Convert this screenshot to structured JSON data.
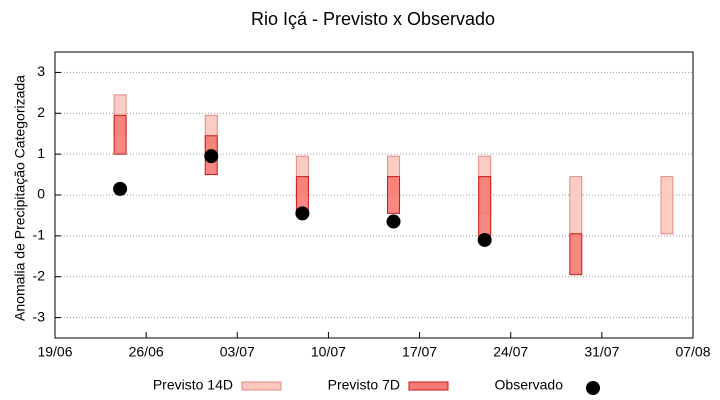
{
  "chart_data": {
    "type": "range",
    "title": "Rio Içá - Previsto x Observado",
    "y_label": "Anomalia de Precipitação Categorizada",
    "x": [
      "24/06",
      "01/07",
      "08/07",
      "15/07",
      "22/07",
      "29/07",
      "05/08"
    ],
    "xlim": [
      "19/06",
      "07/08"
    ],
    "xticks": [
      "19/06",
      "26/06",
      "03/07",
      "10/07",
      "17/07",
      "24/07",
      "31/07",
      "07/08"
    ],
    "ylim": [
      -3.5,
      3.5
    ],
    "yticks": [
      -3,
      -2,
      -1,
      0,
      1,
      2,
      3
    ],
    "grid": true,
    "legend": "bottom",
    "series": [
      {
        "name": "Previsto 14D",
        "type": "range",
        "color": "#fbc6be",
        "edge": "#e58a80",
        "low": [
          1.5,
          1.0,
          0,
          0,
          -0.45,
          -0.95,
          -0.95
        ],
        "high": [
          2.45,
          1.95,
          0.95,
          0.95,
          0.95,
          0.45,
          0.45
        ]
      },
      {
        "name": "Previsto 7D",
        "type": "range",
        "color": "#f77b73",
        "edge": "#c81818",
        "low": [
          1.0,
          0.5,
          -0.45,
          -0.45,
          -1.0,
          -1.95,
          null
        ],
        "high": [
          1.95,
          1.45,
          0.45,
          0.45,
          0.45,
          -0.95,
          null
        ]
      },
      {
        "name": "Observado",
        "type": "scatter",
        "color": "#000000",
        "values": [
          0.15,
          0.95,
          -0.45,
          -0.65,
          -1.1,
          null,
          null
        ]
      }
    ]
  }
}
